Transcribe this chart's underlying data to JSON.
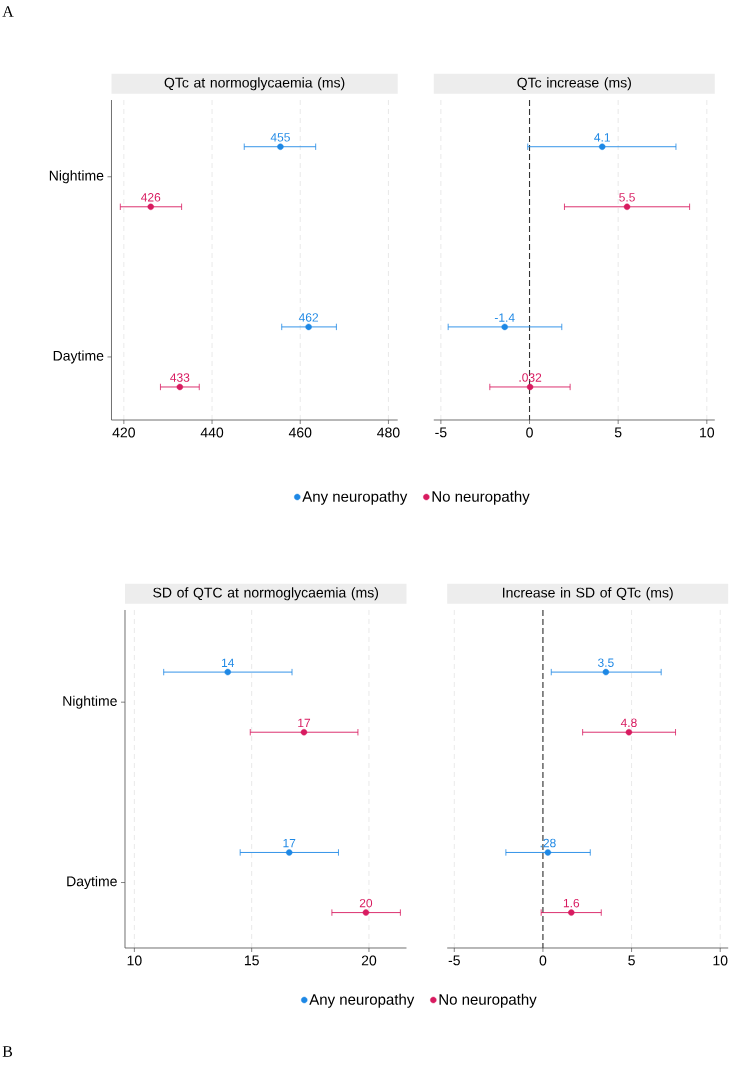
{
  "chart_data": [
    {
      "type": "scatter",
      "orientation": "horizontal",
      "title": "QTc at normoglycaemia (ms)",
      "categories": [
        "Nightime",
        "Daytime"
      ],
      "xlim": [
        417.2,
        482.1
      ],
      "xticks": [
        420,
        440,
        460,
        480
      ],
      "grid": "x",
      "marker": "circle",
      "legend": "bottom",
      "annotations": [
        "A"
      ],
      "series": [
        {
          "name": "Any neuropathy",
          "color": "#1e88e5",
          "values": [
            455.5,
            461.9
          ],
          "errors": [
            [
              447.3,
              463.5
            ],
            [
              455.8,
              468.2
            ]
          ],
          "value_labels": [
            "455",
            "462"
          ]
        },
        {
          "name": "No neuropathy",
          "color": "#d81b60",
          "values": [
            426.1,
            432.7
          ],
          "errors": [
            [
              419.2,
              433.1
            ],
            [
              428.3,
              437.1
            ]
          ],
          "value_labels": [
            "426",
            "433"
          ]
        }
      ]
    },
    {
      "type": "scatter",
      "orientation": "horizontal",
      "title": "QTc increase (ms)",
      "categories": [
        null,
        null
      ],
      "xlim": [
        -5.4,
        10.45
      ],
      "xticks": [
        -5,
        0,
        5,
        10
      ],
      "grid": "x",
      "marker": "circle",
      "tick_labels": "x",
      "ref_lines": [
        {
          "axis": "x",
          "value": 0,
          "color": "#333333",
          "line_style": "dashed"
        }
      ],
      "series": [
        {
          "color": "#1e88e5",
          "values": [
            4.1,
            -1.4
          ],
          "errors": [
            [
              -0.1,
              8.26
            ],
            [
              -4.59,
              1.82
            ]
          ],
          "value_labels": [
            "4.1",
            "-1.4"
          ]
        },
        {
          "color": "#d81b60",
          "values": [
            5.5,
            0.032
          ],
          "errors": [
            [
              1.97,
              9.03
            ],
            [
              -2.24,
              2.29
            ]
          ],
          "value_labels": [
            "5.5",
            ".032"
          ]
        }
      ]
    },
    {
      "type": "scatter",
      "orientation": "horizontal",
      "title": "SD of QTC at normoglycaemia (ms)",
      "categories": [
        "Nightime",
        "Daytime"
      ],
      "xlim": [
        9.6,
        21.6
      ],
      "xticks": [
        10,
        15,
        20
      ],
      "grid": "x",
      "marker": "circle",
      "legend": "bottom",
      "annotations": [
        "B"
      ],
      "series": [
        {
          "name": "Any neuropathy",
          "color": "#1e88e5",
          "values": [
            13.98,
            16.6
          ],
          "errors": [
            [
              11.25,
              16.72
            ],
            [
              14.51,
              18.7
            ]
          ],
          "value_labels": [
            "14",
            "17"
          ]
        },
        {
          "name": "No neuropathy",
          "color": "#d81b60",
          "values": [
            17.23,
            19.87
          ],
          "errors": [
            [
              14.94,
              19.53
            ],
            [
              18.42,
              21.34
            ]
          ],
          "value_labels": [
            "17",
            "20"
          ]
        }
      ]
    },
    {
      "type": "scatter",
      "orientation": "horizontal",
      "title": "Increase in SD of QTc (ms)",
      "categories": [
        null,
        null
      ],
      "xlim": [
        -5.4,
        10.45
      ],
      "xticks": [
        -5,
        0,
        5,
        10
      ],
      "grid": "x",
      "marker": "circle",
      "tick_labels": "x",
      "ref_lines": [
        {
          "axis": "x",
          "value": 0,
          "color": "#333333",
          "line_style": "dashed"
        }
      ],
      "series": [
        {
          "color": "#1e88e5",
          "values": [
            3.55,
            0.28
          ],
          "errors": [
            [
              0.47,
              6.67
            ],
            [
              -2.09,
              2.67
            ]
          ],
          "value_labels": [
            "3.5",
            ".28"
          ]
        },
        {
          "color": "#d81b60",
          "values": [
            4.85,
            1.6
          ],
          "errors": [
            [
              2.24,
              7.48
            ],
            [
              -0.1,
              3.29
            ]
          ],
          "value_labels": [
            "4.8",
            "1.6"
          ]
        }
      ]
    }
  ]
}
